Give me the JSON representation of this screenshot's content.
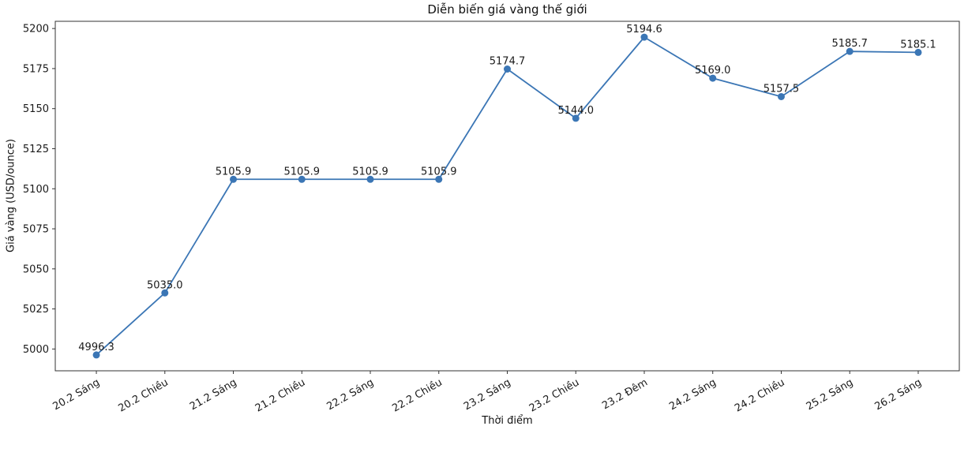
{
  "chart_data": {
    "type": "line",
    "title": "Diễn biến giá vàng thế giới",
    "xlabel": "Thời điểm",
    "ylabel": "Giá vàng (USD/ounce)",
    "categories": [
      "20.2 Sáng",
      "20.2 Chiều",
      "21.2 Sáng",
      "21.2 Chiều",
      "22.2 Sáng",
      "22.2 Chiều",
      "23.2 Sáng",
      "23.2 Chiều",
      "23.2 Đêm",
      "24.2 Sáng",
      "24.2 Chiều",
      "25.2 Sáng",
      "26.2 Sáng"
    ],
    "values": [
      4996.3,
      5035.0,
      5105.9,
      5105.9,
      5105.9,
      5105.9,
      5174.7,
      5144.0,
      5194.6,
      5169.0,
      5157.5,
      5185.7,
      5185.1
    ],
    "point_labels": [
      "4996.3",
      "5035.0",
      "5105.9",
      "5105.9",
      "5105.9",
      "5105.9",
      "5174.7",
      "5144.0",
      "5194.6",
      "5169.0",
      "5157.5",
      "5185.7",
      "5185.1"
    ],
    "yticks": [
      5000,
      5025,
      5050,
      5075,
      5100,
      5125,
      5150,
      5175,
      5200
    ],
    "ylim": [
      4986.4,
      5204.5
    ],
    "x_margin": 0.6,
    "grid": false,
    "legend": null,
    "line_color": "#3b76b5",
    "axis_color": "#333333",
    "text_color": "#1a1a1a"
  }
}
